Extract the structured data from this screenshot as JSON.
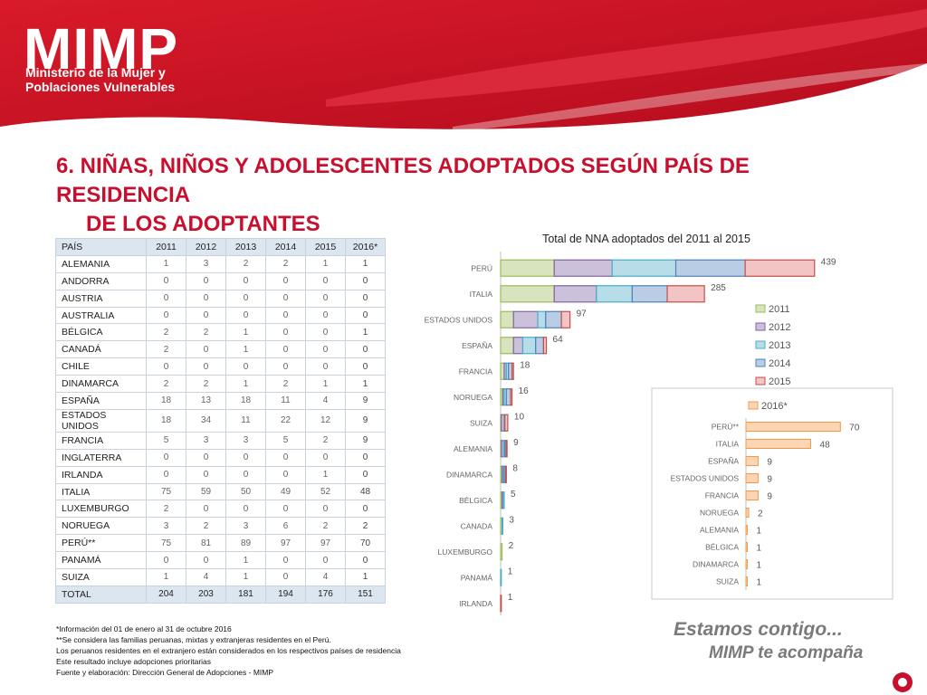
{
  "brand": {
    "logo": "MIMP",
    "line1": "Ministerio de la Mujer y",
    "line2": "Poblaciones Vulnerables",
    "red": "#c8102e"
  },
  "title": {
    "line1": "6. NIÑAS, NIÑOS Y ADOLESCENTES ADOPTADOS SEGÚN PAÍS DE RESIDENCIA",
    "line2": "DE LOS ADOPTANTES"
  },
  "table": {
    "headers": [
      "PAÍS",
      "2011",
      "2012",
      "2013",
      "2014",
      "2015",
      "2016*"
    ],
    "rows": [
      [
        "ALEMANIA",
        "1",
        "3",
        "2",
        "2",
        "1",
        "1"
      ],
      [
        "ANDORRA",
        "0",
        "0",
        "0",
        "0",
        "0",
        "0"
      ],
      [
        "AUSTRIA",
        "0",
        "0",
        "0",
        "0",
        "0",
        "0"
      ],
      [
        "AUSTRALIA",
        "0",
        "0",
        "0",
        "0",
        "0",
        "0"
      ],
      [
        "BÉLGICA",
        "2",
        "2",
        "1",
        "0",
        "0",
        "1"
      ],
      [
        "CANADÁ",
        "2",
        "0",
        "1",
        "0",
        "0",
        "0"
      ],
      [
        "CHILE",
        "0",
        "0",
        "0",
        "0",
        "0",
        "0"
      ],
      [
        "DINAMARCA",
        "2",
        "2",
        "1",
        "2",
        "1",
        "1"
      ],
      [
        "ESPAÑA",
        "18",
        "13",
        "18",
        "11",
        "4",
        "9"
      ],
      [
        "ESTADOS UNIDOS",
        "18",
        "34",
        "11",
        "22",
        "12",
        "9"
      ],
      [
        "FRANCIA",
        "5",
        "3",
        "3",
        "5",
        "2",
        "9"
      ],
      [
        "INGLATERRA",
        "0",
        "0",
        "0",
        "0",
        "0",
        "0"
      ],
      [
        "IRLANDA",
        "0",
        "0",
        "0",
        "0",
        "1",
        "0"
      ],
      [
        "ITALIA",
        "75",
        "59",
        "50",
        "49",
        "52",
        "48"
      ],
      [
        "LUXEMBURGO",
        "2",
        "0",
        "0",
        "0",
        "0",
        "0"
      ],
      [
        "NORUEGA",
        "3",
        "2",
        "3",
        "6",
        "2",
        "2"
      ],
      [
        "PERÚ**",
        "75",
        "81",
        "89",
        "97",
        "97",
        "70"
      ],
      [
        "PANAMÁ",
        "0",
        "0",
        "1",
        "0",
        "0",
        "0"
      ],
      [
        "SUIZA",
        "1",
        "4",
        "1",
        "0",
        "4",
        "1"
      ]
    ],
    "total": [
      "TOTAL",
      "204",
      "203",
      "181",
      "194",
      "176",
      "151"
    ]
  },
  "notes": [
    "*Información del 01 de enero al 31 de octubre 2016",
    "**Se considera las familias peruanas, mixtas y extranjeras residentes en el Perú.",
    "Los peruanos residentes en el extranjero están considerados en los respectivos países de residencia",
    "Este resultado incluye adopciones prioritarias",
    "Fuente y elaboración: Dirección General de Adopciones - MIMP"
  ],
  "slogan": {
    "line1": "Estamos contigo...",
    "line2": "MIMP te acompaña"
  },
  "chart_data": [
    {
      "type": "bar",
      "orientation": "horizontal",
      "stacked": true,
      "title": "Total de NNA adoptados del 2011 al 2015",
      "categories": [
        "PERÚ",
        "ITALIA",
        "ESTADOS UNIDOS",
        "ESPAÑA",
        "FRANCIA",
        "NORUEGA",
        "SUIZA",
        "ALEMANIA",
        "DINAMARCA",
        "BÉLGICA",
        "CANADA",
        "LUXEMBURGO",
        "PANAMÁ",
        "IRLANDA"
      ],
      "series": [
        {
          "name": "2011",
          "color": "#d7e4bd",
          "edge": "#9bbb59",
          "values": [
            75,
            75,
            18,
            18,
            5,
            3,
            1,
            1,
            2,
            2,
            2,
            2,
            0,
            0
          ]
        },
        {
          "name": "2012",
          "color": "#ccc1da",
          "edge": "#8064a2",
          "values": [
            81,
            59,
            34,
            13,
            3,
            2,
            4,
            3,
            2,
            2,
            0,
            0,
            0,
            0
          ]
        },
        {
          "name": "2013",
          "color": "#b7dee8",
          "edge": "#4bacc6",
          "values": [
            89,
            50,
            11,
            18,
            3,
            3,
            1,
            2,
            1,
            1,
            1,
            0,
            1,
            0
          ]
        },
        {
          "name": "2014",
          "color": "#b9cde5",
          "edge": "#4f81bd",
          "values": [
            97,
            49,
            22,
            11,
            5,
            6,
            0,
            2,
            2,
            0,
            0,
            0,
            0,
            0
          ]
        },
        {
          "name": "2015",
          "color": "#f2c4c4",
          "edge": "#c0504d",
          "values": [
            97,
            52,
            12,
            4,
            2,
            2,
            4,
            1,
            1,
            0,
            0,
            0,
            0,
            1
          ]
        }
      ],
      "totals": [
        439,
        285,
        97,
        64,
        18,
        16,
        10,
        9,
        8,
        5,
        3,
        2,
        1,
        1
      ],
      "legend": "right"
    },
    {
      "type": "bar",
      "orientation": "horizontal",
      "series": [
        {
          "name": "2016*",
          "color": "#fcd5b5",
          "edge": "#f79646",
          "values": [
            70,
            48,
            9,
            9,
            9,
            2,
            1,
            1,
            1,
            1
          ]
        }
      ],
      "categories": [
        "PERÚ**",
        "ITALIA",
        "ESPAÑA",
        "ESTADOS UNIDOS",
        "FRANCIA",
        "NORUEGA",
        "ALEMANIA",
        "BÉLGICA",
        "DINAMARCA",
        "SUIZA"
      ],
      "legend": "top"
    }
  ]
}
